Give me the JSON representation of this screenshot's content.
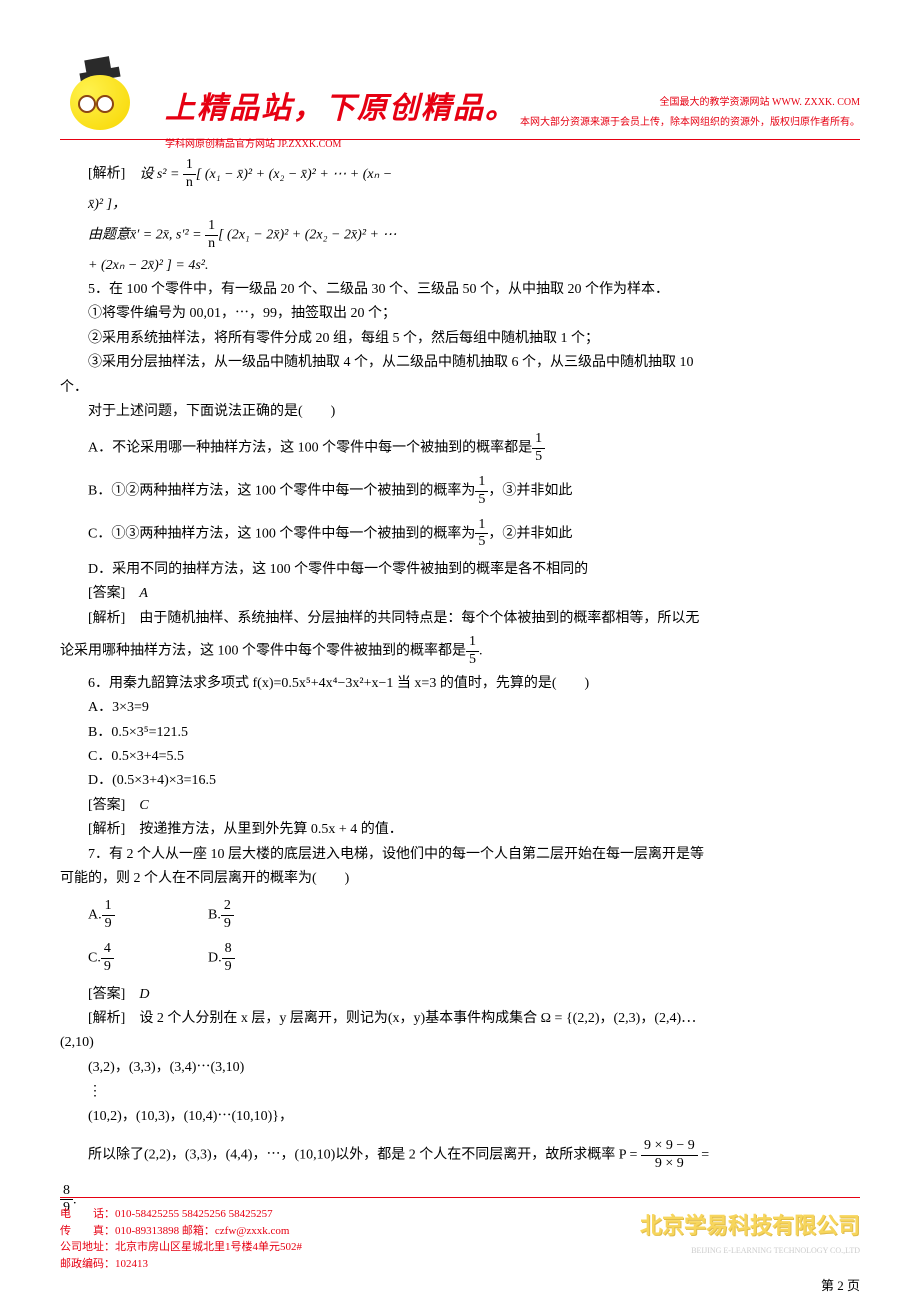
{
  "header": {
    "main_title": "上精品站，下原创精品。",
    "subtitle": "学科网原创精品官方网站 JP.ZXXK.COM",
    "right_line1": "全国最大的教学资源网站 WWW. ZXXK. COM",
    "right_line2": "本网大部分资源来源于会员上传，除本网组织的资源外，版权归原作者所有。"
  },
  "solution4": {
    "label": "[解析]",
    "line1_pre": "设 s² = ",
    "line1_post": "[ (x₁ − x̄)² + (x₂ − x̄)² + ⋯ + (xₙ −",
    "line2": "x̄)² ]，",
    "line3_pre": "由题意x̄′ = 2x̄, s′² = ",
    "line3_post": "[ (2x₁ − 2x̄)² + (2x₂ − 2x̄)² + ⋯",
    "line4": "+ (2xₙ − 2x̄)² ] = 4s²."
  },
  "q5": {
    "stem": "5．在 100 个零件中，有一级品 20 个、二级品 30 个、三级品 50 个，从中抽取 20 个作为样本．",
    "line1": "①将零件编号为 00,01，⋯，99，抽签取出 20 个；",
    "line2": "②采用系统抽样法，将所有零件分成 20 组，每组 5 个，然后每组中随机抽取 1 个；",
    "line3": "③采用分层抽样法，从一级品中随机抽取 4 个，从二级品中随机抽取 6 个，从三级品中随机抽取 10",
    "line3b": "个．",
    "question": "对于上述问题，下面说法正确的是(　　)",
    "optA_pre": "A．不论采用哪一种抽样方法，这 100 个零件中每一个被抽到的概率都是",
    "optB_pre": "B．①②两种抽样方法，这 100 个零件中每一个被抽到的概率为",
    "optB_post": "，③并非如此",
    "optC_pre": "C．①③两种抽样方法，这 100 个零件中每一个被抽到的概率为",
    "optC_post": "，②并非如此",
    "optD": "D．采用不同的抽样方法，这 100 个零件中每一个零件被抽到的概率是各不相同的",
    "answer_label": "[答案]",
    "answer": "A",
    "analysis_label": "[解析]",
    "analysis1": "由于随机抽样、系统抽样、分层抽样的共同特点是：每个个体被抽到的概率都相等，所以无",
    "analysis2_pre": "论采用哪种抽样方法，这 100 个零件中每个零件被抽到的概率都是",
    "analysis2_post": "."
  },
  "q6": {
    "stem": "6．用秦九韶算法求多项式 f(x)=0.5x⁵+4x⁴−3x²+x−1 当 x=3 的值时，先算的是(　　)",
    "optA": "A．3×3=9",
    "optB": "B．0.5×3⁵=121.5",
    "optC": "C．0.5×3+4=5.5",
    "optD": "D．(0.5×3+4)×3=16.5",
    "answer_label": "[答案]",
    "answer": "C",
    "analysis_label": "[解析]",
    "analysis": "按递推方法，从里到外先算 0.5x + 4 的值．"
  },
  "q7": {
    "stem1": "7．有 2 个人从一座 10 层大楼的底层进入电梯，设他们中的每一个人自第二层开始在每一层离开是等",
    "stem2": "可能的，则 2 个人在不同层离开的概率为(　　)",
    "optA": "A.",
    "optB": "B.",
    "optC": "C.",
    "optD": "D.",
    "answer_label": "[答案]",
    "answer": "D",
    "analysis_label": "[解析]",
    "analysis1": "设 2 个人分别在 x 层，y 层离开，则记为(x，y)基本事件构成集合 Ω = {(2,2)，(2,3)，(2,4)⋯",
    "analysis1b": "(2,10)",
    "analysis2": "(3,2)，(3,3)，(3,4)⋯(3,10)",
    "analysis3": "⋮",
    "analysis4": "(10,2)，(10,3)，(10,4)⋯(10,10)}，",
    "analysis5_pre": "所以除了(2,2)，(3,3)，(4,4)，⋯，(10,10)以外，都是 2 个人在不同层离开，故所求概率 P = ",
    "analysis5_post": " ="
  },
  "fractions": {
    "one_fifth_num": "1",
    "one_fifth_den": "5",
    "one_n_num": "1",
    "one_n_den": "n",
    "f19_num": "1",
    "f19_den": "9",
    "f29_num": "2",
    "f29_den": "9",
    "f49_num": "4",
    "f49_den": "9",
    "f89_num": "8",
    "f89_den": "9",
    "prob_num": "9 × 9 − 9",
    "prob_den": "9 × 9"
  },
  "footer": {
    "phone": "电　　话：010-58425255 58425256 58425257",
    "fax": "传　　真：010-89313898 邮箱：czfw@zxxk.com",
    "address": "公司地址：北京市房山区星城北里1号楼4单元502#",
    "postcode": "邮政编码：102413",
    "company": "北京学易科技有限公司",
    "company_sub": "BEIJING E-LEARNING TECHNOLOGY CO.,LTD",
    "page": "第 2 页"
  }
}
